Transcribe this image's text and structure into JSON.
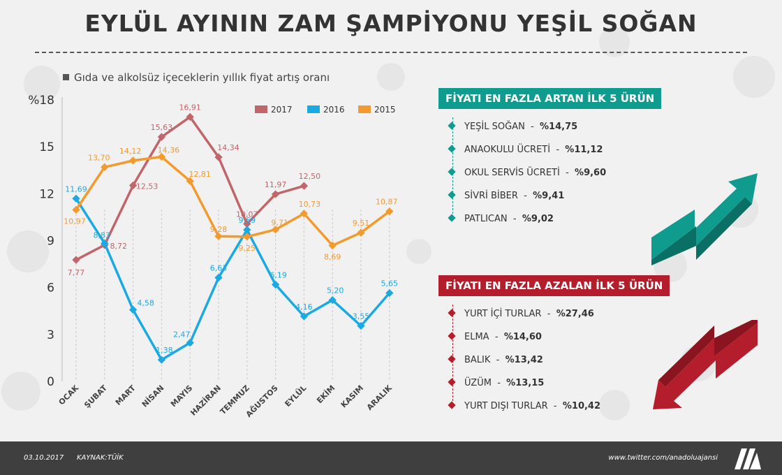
{
  "title": "EYLÜL AYININ ZAM ŞAMPİYONU YEŞİL SOĞAN",
  "subtitle": "Gıda ve alkolsüz içeceklerin yıllık fiyat artış oranı",
  "chart_data": {
    "type": "line",
    "title": "Gıda ve alkolsüz içeceklerin yıllık fiyat artış oranı",
    "ylabel": "%",
    "ylim": [
      0,
      18
    ],
    "yticks": [
      "0",
      "3",
      "6",
      "9",
      "12",
      "15",
      "%18"
    ],
    "categories": [
      "OCAK",
      "ŞUBAT",
      "MART",
      "NİSAN",
      "MAYIS",
      "HAZİRAN",
      "TEMMUZ",
      "AĞUSTOS",
      "EYLÜL",
      "EKİM",
      "KASIM",
      "ARALIK"
    ],
    "legend_position": "top-right",
    "grid": false,
    "series": [
      {
        "name": "2017",
        "color": "#c0666a",
        "values": [
          7.77,
          8.72,
          12.53,
          15.63,
          16.91,
          14.34,
          10.07,
          11.97,
          12.5,
          null,
          null,
          null
        ],
        "labels": [
          "7,77",
          "8,72",
          "12,53",
          "15,63",
          "16,91",
          "14,34",
          "10,07",
          "11,97",
          "12,50",
          "",
          "",
          ""
        ]
      },
      {
        "name": "2016",
        "color": "#1aa9e1",
        "values": [
          11.69,
          8.83,
          4.58,
          1.38,
          2.47,
          6.63,
          9.69,
          6.19,
          4.16,
          5.2,
          3.55,
          5.65
        ],
        "labels": [
          "11,69",
          "8,83",
          "4,58",
          "1,38",
          "2,47",
          "6,63",
          "9,69",
          "6,19",
          "4,16",
          "5,20",
          "3,55",
          "5,65"
        ]
      },
      {
        "name": "2015",
        "color": "#f39a2e",
        "values": [
          10.97,
          13.7,
          14.12,
          14.36,
          12.81,
          9.28,
          9.25,
          9.71,
          10.73,
          8.69,
          9.51,
          10.87
        ],
        "labels": [
          "10,97",
          "13,70",
          "14,12",
          "14,36",
          "12,81",
          "9,28",
          "9,25",
          "9,71",
          "10,73",
          "8,69",
          "9,51",
          "10,87"
        ]
      }
    ]
  },
  "top5_up": {
    "title": "FİYATI EN FAZLA ARTAN İLK 5 ÜRÜN",
    "color": "#0f9b8e",
    "items": [
      {
        "name": "YEŞİL SOĞAN",
        "value": "%14,75"
      },
      {
        "name": "ANAOKULU ÜCRETİ",
        "value": "%11,12"
      },
      {
        "name": "OKUL SERVİS ÜCRETİ",
        "value": "%9,60"
      },
      {
        "name": "SİVRİ BİBER",
        "value": "%9,41"
      },
      {
        "name": "PATLICAN",
        "value": "%9,02"
      }
    ]
  },
  "top5_down": {
    "title": "FİYATI EN FAZLA AZALAN İLK 5 ÜRÜN",
    "color": "#b41e2c",
    "items": [
      {
        "name": "YURT İÇİ TURLAR",
        "value": "%27,46"
      },
      {
        "name": "ELMA",
        "value": "%14,60"
      },
      {
        "name": "BALIK",
        "value": "%13,42"
      },
      {
        "name": "ÜZÜM",
        "value": "%13,15"
      },
      {
        "name": "YURT DIŞI TURLAR",
        "value": "%10,42"
      }
    ]
  },
  "footer": {
    "date": "03.10.2017",
    "source": "KAYNAK:TÜİK",
    "twitter": "www.twitter.com/anadoluajansi"
  }
}
